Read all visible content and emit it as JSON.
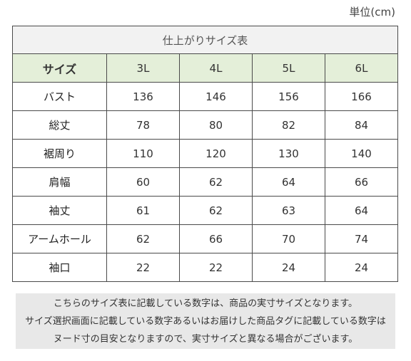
{
  "unit_label": "単位(cm)",
  "table": {
    "title": "仕上がりサイズ表",
    "header": [
      "サイズ",
      "3L",
      "4L",
      "5L",
      "6L"
    ],
    "rows": [
      {
        "label": "バスト",
        "values": [
          "136",
          "146",
          "156",
          "166"
        ]
      },
      {
        "label": "総丈",
        "values": [
          "78",
          "80",
          "82",
          "84"
        ]
      },
      {
        "label": "裾周り",
        "values": [
          "110",
          "120",
          "130",
          "140"
        ]
      },
      {
        "label": "肩幅",
        "values": [
          "60",
          "62",
          "64",
          "66"
        ]
      },
      {
        "label": "袖丈",
        "values": [
          "61",
          "62",
          "63",
          "64"
        ]
      },
      {
        "label": "アームホール",
        "values": [
          "62",
          "66",
          "70",
          "74"
        ]
      },
      {
        "label": "袖口",
        "values": [
          "22",
          "22",
          "24",
          "24"
        ]
      }
    ]
  },
  "note": {
    "lines": [
      "こちらのサイズ表に記載している数字は、商品の実寸サイズとなります。",
      "サイズ選択画面に記載している数字あるいはお届けした商品タグに記載している数字は",
      "ヌード寸の目安となりますので、実寸サイズと異なる場合がございます。"
    ]
  },
  "colors": {
    "header_bg": "#e4efd9",
    "title_bg": "#f2f2f2",
    "note_bg": "#e8e8e8",
    "border": "#4a4a4a"
  }
}
